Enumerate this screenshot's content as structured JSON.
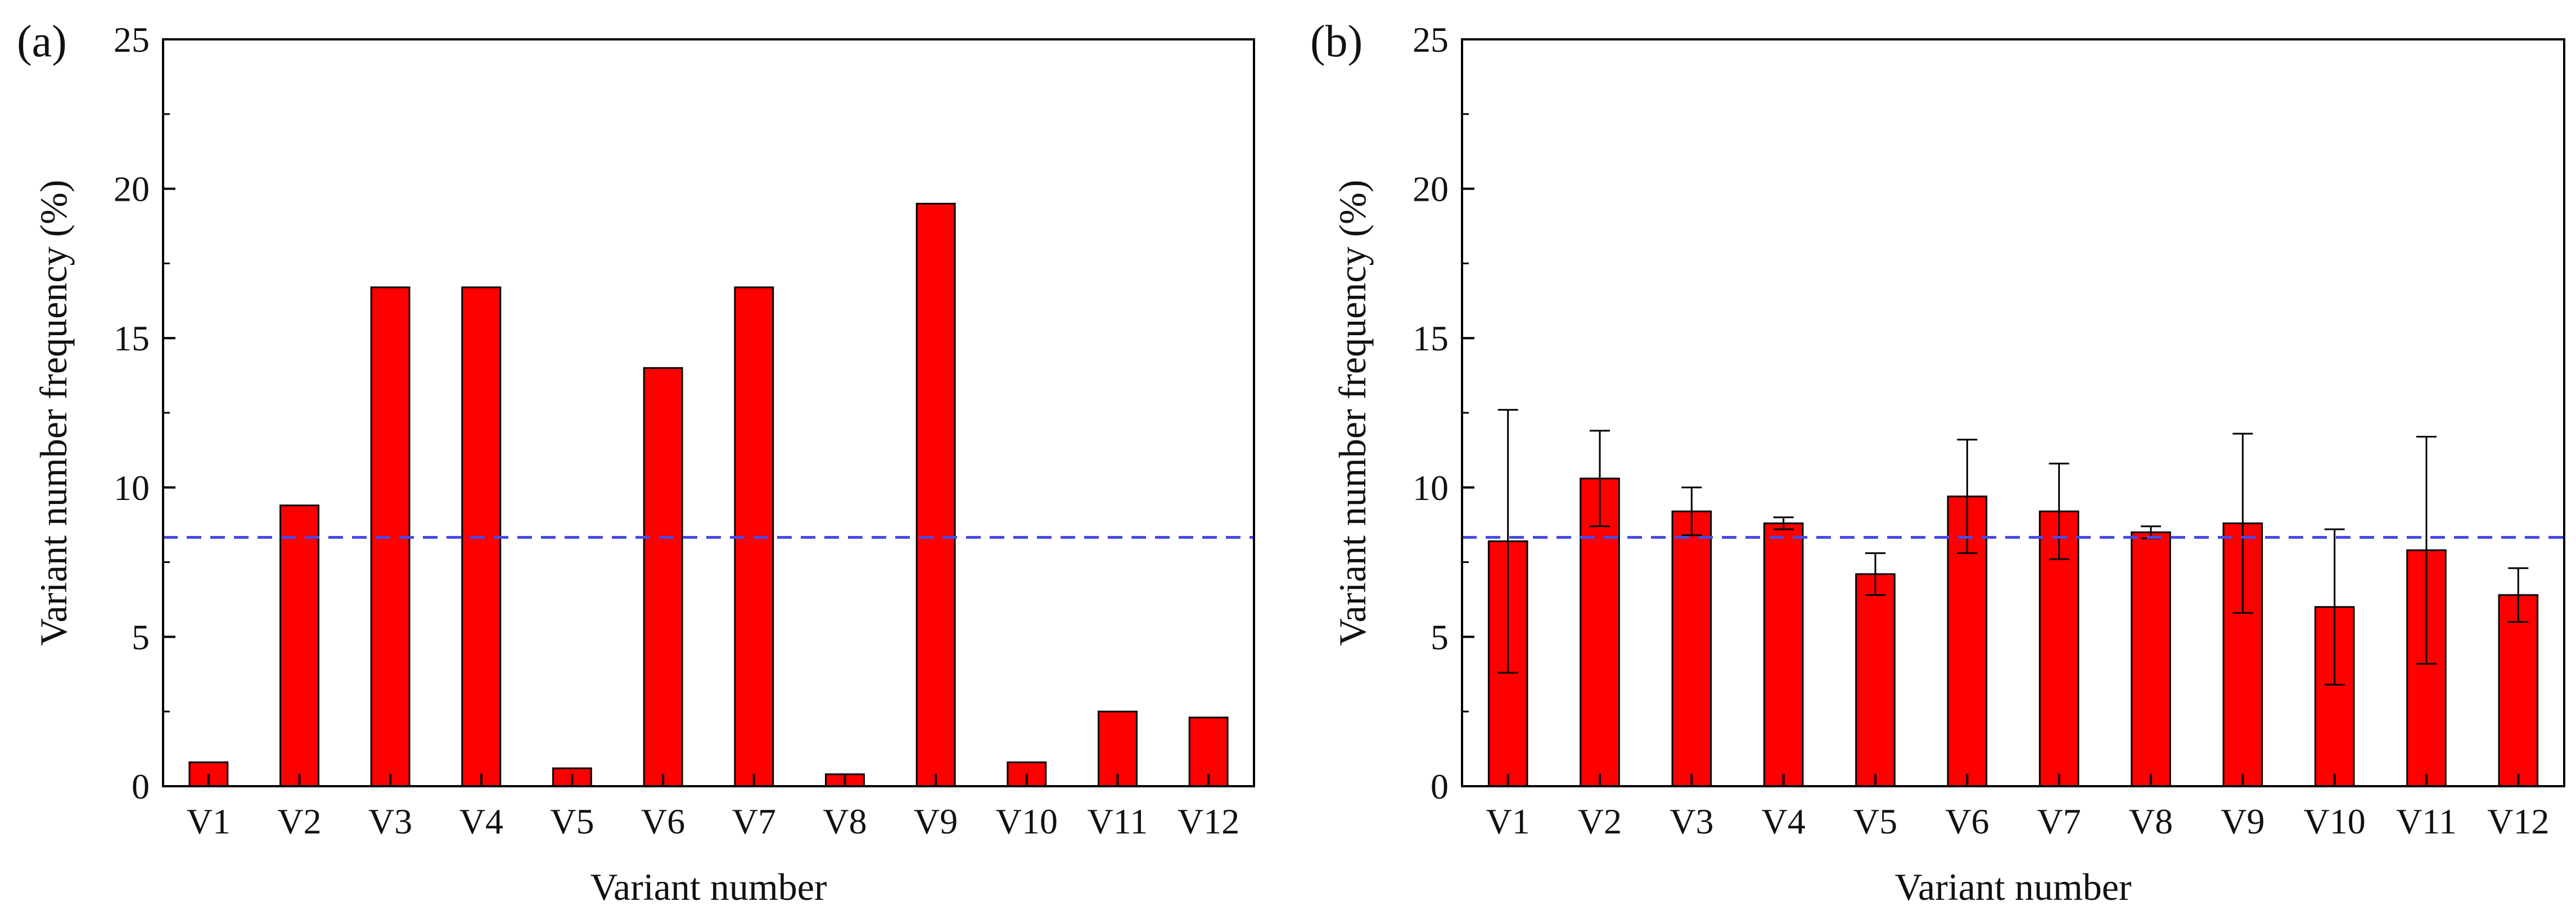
{
  "chart_data": [
    {
      "panel_label": "(a)",
      "type": "bar",
      "categories": [
        "V1",
        "V2",
        "V3",
        "V4",
        "V5",
        "V6",
        "V7",
        "V8",
        "V9",
        "V10",
        "V11",
        "V12"
      ],
      "values": [
        0.8,
        9.4,
        16.7,
        16.7,
        0.6,
        14.0,
        16.7,
        0.4,
        19.5,
        0.8,
        2.5,
        2.3
      ],
      "errors": null,
      "reference_line": 8.33,
      "xlabel": "Variant number",
      "ylabel": "Variant number frequency (%)",
      "ylim": [
        0,
        25
      ],
      "yticks": [
        "0",
        "5",
        "10",
        "15",
        "20",
        "25"
      ],
      "bar_color": "#ff0000",
      "reference_line_color": "#4a4ae6"
    },
    {
      "panel_label": "(b)",
      "type": "bar",
      "categories": [
        "V1",
        "V2",
        "V3",
        "V4",
        "V5",
        "V6",
        "V7",
        "V8",
        "V9",
        "V10",
        "V11",
        "V12"
      ],
      "values": [
        8.2,
        10.3,
        9.2,
        8.8,
        7.1,
        9.7,
        9.2,
        8.5,
        8.8,
        6.0,
        7.9,
        6.4
      ],
      "errors": [
        4.4,
        1.6,
        0.8,
        0.2,
        0.7,
        1.9,
        1.6,
        0.2,
        3.0,
        2.6,
        3.8,
        0.9
      ],
      "reference_line": 8.33,
      "xlabel": "Variant number",
      "ylabel": "Variant number frequency (%)",
      "ylim": [
        0,
        25
      ],
      "yticks": [
        "0",
        "5",
        "10",
        "15",
        "20",
        "25"
      ],
      "bar_color": "#ff0000",
      "reference_line_color": "#4a4ae6"
    }
  ]
}
